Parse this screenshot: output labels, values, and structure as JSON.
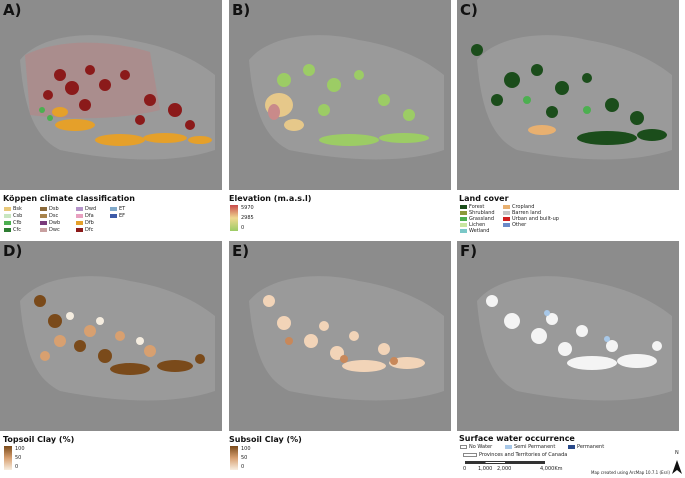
{
  "panels": [
    {
      "label": "A)",
      "title": "Köppen climate classification"
    },
    {
      "label": "B)",
      "title": "Elevation (m.a.s.l)"
    },
    {
      "label": "C)",
      "title": "Land cover"
    },
    {
      "label": "D)",
      "title": "Topsoil Clay (%)"
    },
    {
      "label": "E)",
      "title": "Subsoil Clay (%)"
    },
    {
      "label": "F)",
      "title": "Surface water occurrence"
    }
  ],
  "koppen": [
    {
      "code": "Bsk",
      "color": "#e8c87a"
    },
    {
      "code": "Dsb",
      "color": "#8b6a3a"
    },
    {
      "code": "Dwd",
      "color": "#b493c9"
    },
    {
      "code": "ET",
      "color": "#7fa8c9"
    },
    {
      "code": "Csb",
      "color": "#c8e6c0"
    },
    {
      "code": "Dsc",
      "color": "#a8834c"
    },
    {
      "code": "Dfa",
      "color": "#e8a0c0"
    },
    {
      "code": "EF",
      "color": "#3d5aa8"
    },
    {
      "code": "Cfb",
      "color": "#4caf50"
    },
    {
      "code": "Dwb",
      "color": "#7a3a7a"
    },
    {
      "code": "Dfb",
      "color": "#e5a02a"
    },
    {
      "code": "Cfc",
      "color": "#2e7d32"
    },
    {
      "code": "Dwc",
      "color": "#c8a0a0"
    },
    {
      "code": "Dfc",
      "color": "#8b1a1a"
    }
  ],
  "elevation": {
    "max": "5970",
    "mid": "2985",
    "min": "0"
  },
  "landcover": [
    {
      "name": "Forest",
      "color": "#1b4d1b"
    },
    {
      "name": "Cropland",
      "color": "#e8b070"
    },
    {
      "name": "Shrubland",
      "color": "#8a9a3a"
    },
    {
      "name": "Barren land",
      "color": "#c8c8c8"
    },
    {
      "name": "Grassland",
      "color": "#4caf50"
    },
    {
      "name": "Urban and built-up",
      "color": "#d02020"
    },
    {
      "name": "Lichen",
      "color": "#c8e6a0"
    },
    {
      "name": "Other",
      "color": "#6a8ac8"
    },
    {
      "name": "Wetland",
      "color": "#7ac8c8"
    }
  ],
  "topsoil": {
    "max": "100",
    "mid": "50",
    "min": "0"
  },
  "subsoil": {
    "max": "100",
    "mid": "50",
    "min": "0"
  },
  "water": [
    {
      "name": "No Water",
      "color": "#ffffff"
    },
    {
      "name": "Semi Permanent",
      "color": "#a8c8e8"
    },
    {
      "name": "Permanent",
      "color": "#2a4a8a"
    }
  ],
  "boundary_label": "Provinces and Territories of Canada",
  "scale": {
    "t0": "0",
    "t1": "1,000",
    "t2": "2,000",
    "t3": "4,000",
    "unit": "Km"
  },
  "credit": "Map created using ArcMap 10.7.1 (Esri)",
  "north": "N"
}
